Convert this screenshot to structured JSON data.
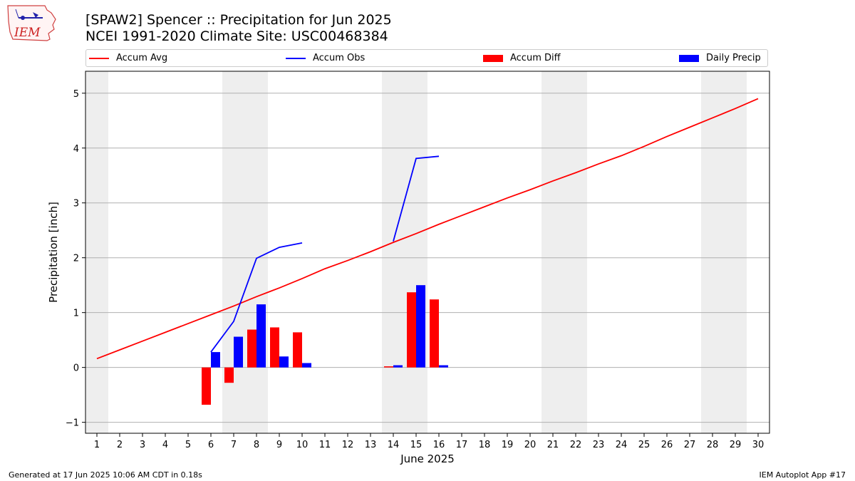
{
  "header": {
    "title_line1": "[SPAW2] Spencer :: Precipitation for Jun 2025",
    "title_line2": "NCEI 1991-2020 Climate Site: USC00468384"
  },
  "logo": {
    "text": "IEM"
  },
  "footer": {
    "left": "Generated at 17 Jun 2025 10:06 AM CDT in 0.18s",
    "right": "IEM Autoplot App #17"
  },
  "colors": {
    "avg": "#ff0000",
    "obs": "#0000ff",
    "diff": "#ff0000",
    "daily": "#0000ff",
    "weekend_band": "#eeeeee",
    "grid": "#b0b0b0"
  },
  "chart_data": {
    "type": "bar",
    "xlabel": "June 2025",
    "ylabel": "Precipitation [inch]",
    "xlim": [
      0.5,
      30.5
    ],
    "ylim": [
      -1.2,
      5.4
    ],
    "x_ticks": [
      1,
      2,
      3,
      4,
      5,
      6,
      7,
      8,
      9,
      10,
      11,
      12,
      13,
      14,
      15,
      16,
      17,
      18,
      19,
      20,
      21,
      22,
      23,
      24,
      25,
      26,
      27,
      28,
      29,
      30
    ],
    "y_ticks": [
      -1,
      0,
      1,
      2,
      3,
      4,
      5
    ],
    "grid": "horizontal",
    "legend_placement": "top",
    "weekend_bands": [
      [
        0.5,
        1.5
      ],
      [
        6.5,
        8.5
      ],
      [
        13.5,
        15.5
      ],
      [
        20.5,
        22.5
      ],
      [
        27.5,
        29.5
      ]
    ],
    "series": [
      {
        "name": "Accum Avg",
        "kind": "line",
        "x": [
          1,
          2,
          3,
          4,
          5,
          6,
          7,
          8,
          9,
          10,
          11,
          12,
          13,
          14,
          15,
          16,
          17,
          18,
          19,
          20,
          21,
          22,
          23,
          24,
          25,
          26,
          27,
          28,
          29,
          30
        ],
        "values": [
          0.16,
          0.32,
          0.48,
          0.64,
          0.8,
          0.96,
          1.12,
          1.29,
          1.45,
          1.62,
          1.8,
          1.95,
          2.11,
          2.28,
          2.44,
          2.61,
          2.77,
          2.93,
          3.09,
          3.24,
          3.4,
          3.55,
          3.71,
          3.86,
          4.03,
          4.21,
          4.38,
          4.55,
          4.72,
          4.9
        ]
      },
      {
        "name": "Accum Obs",
        "kind": "line",
        "segments": [
          {
            "x": [
              6,
              7,
              8,
              9,
              10
            ],
            "values": [
              0.28,
              0.84,
              1.99,
              2.19,
              2.27
            ]
          },
          {
            "x": [
              14,
              15,
              16
            ],
            "values": [
              2.3,
              3.81,
              3.85
            ]
          }
        ]
      },
      {
        "name": "Accum Diff",
        "kind": "bar",
        "x": [
          6,
          7,
          8,
          9,
          10,
          14,
          15,
          16
        ],
        "values": [
          -0.68,
          -0.28,
          0.69,
          0.73,
          0.64,
          0.02,
          1.37,
          1.24
        ]
      },
      {
        "name": "Daily Precip",
        "kind": "bar",
        "x": [
          6,
          7,
          8,
          9,
          10,
          14,
          15,
          16
        ],
        "values": [
          0.28,
          0.56,
          1.15,
          0.2,
          0.08,
          0.04,
          1.5,
          0.04
        ]
      }
    ]
  }
}
